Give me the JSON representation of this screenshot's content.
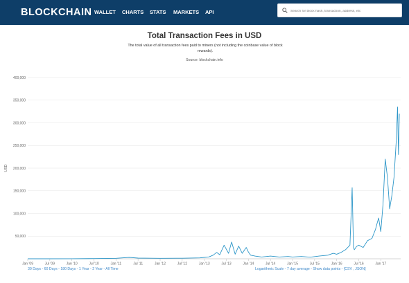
{
  "header": {
    "logo": "BLOCKCHAIN",
    "nav": [
      "WALLET",
      "CHARTS",
      "STATS",
      "MARKETS",
      "API"
    ],
    "search_placeholder": "Search for block hash, transaction, address, etc"
  },
  "page": {
    "title": "Total Transaction Fees in USD",
    "subtitle": "The total value of all transaction fees paid to miners (not including the coinbase value of block rewards).",
    "source": "Source: blockchain.info"
  },
  "chart_data": {
    "type": "line",
    "title": "Total Transaction Fees in USD",
    "ylabel": "USD",
    "xlabel": "",
    "ylim": [
      0,
      400000
    ],
    "yticks": [
      "400,000",
      "350,000",
      "300,000",
      "250,000",
      "200,000",
      "150,000",
      "100,000",
      "50,000"
    ],
    "xticks": [
      "Jan '09",
      "Jul '09",
      "Jan '10",
      "Jul '10",
      "Jan '11",
      "Jul '11",
      "Jan '12",
      "Jul '12",
      "Jan '13",
      "Jul '13",
      "Jan '14",
      "Jul '14",
      "Jan '15",
      "Jul '15",
      "Jan '16",
      "Jul '16",
      "Jan '17"
    ],
    "grid": true,
    "color": "#2c96c8",
    "series": [
      {
        "x": [
          2009.0,
          2009.5,
          2010.0,
          2010.5,
          2011.0,
          2011.3,
          2011.5,
          2011.8,
          2012.0,
          2012.5,
          2012.9,
          2013.0,
          2013.1,
          2013.2,
          2013.28,
          2013.35,
          2013.45,
          2013.55,
          2013.62,
          2013.7,
          2013.78,
          2013.86,
          2013.95,
          2014.0,
          2014.05,
          2014.15,
          2014.3,
          2014.5,
          2014.7,
          2014.9,
          2015.0,
          2015.2,
          2015.4,
          2015.6,
          2015.8,
          2015.92,
          2016.0,
          2016.1,
          2016.2,
          2016.3,
          2016.35,
          2016.38,
          2016.4,
          2016.45,
          2016.5,
          2016.6,
          2016.7,
          2016.8,
          2016.88,
          2016.92,
          2016.95,
          2017.0,
          2017.05,
          2017.1,
          2017.15,
          2017.2,
          2017.25,
          2017.3,
          2017.35,
          2017.38,
          2017.4,
          2017.42
        ],
        "y": [
          0,
          0,
          200,
          500,
          1000,
          3000,
          1500,
          1200,
          1000,
          1200,
          2000,
          3000,
          4000,
          8000,
          14000,
          9000,
          30000,
          12000,
          37000,
          10000,
          28000,
          12000,
          25000,
          15000,
          8000,
          6000,
          4000,
          6000,
          4000,
          5000,
          4000,
          5000,
          3500,
          6000,
          8000,
          12000,
          10000,
          14000,
          20000,
          30000,
          157000,
          25000,
          20000,
          27000,
          30000,
          25000,
          40000,
          45000,
          65000,
          80000,
          90000,
          60000,
          120000,
          220000,
          180000,
          110000,
          140000,
          180000,
          260000,
          335000,
          230000,
          320000
        ]
      }
    ]
  },
  "footer": {
    "ranges": [
      "30 Days",
      "60 Days",
      "180 Days",
      "1 Year",
      "2 Year",
      "All Time"
    ],
    "options": [
      "Logarithmic Scale",
      "7 day average",
      "Show data points"
    ],
    "exports": [
      "CSV",
      "JSON"
    ]
  }
}
